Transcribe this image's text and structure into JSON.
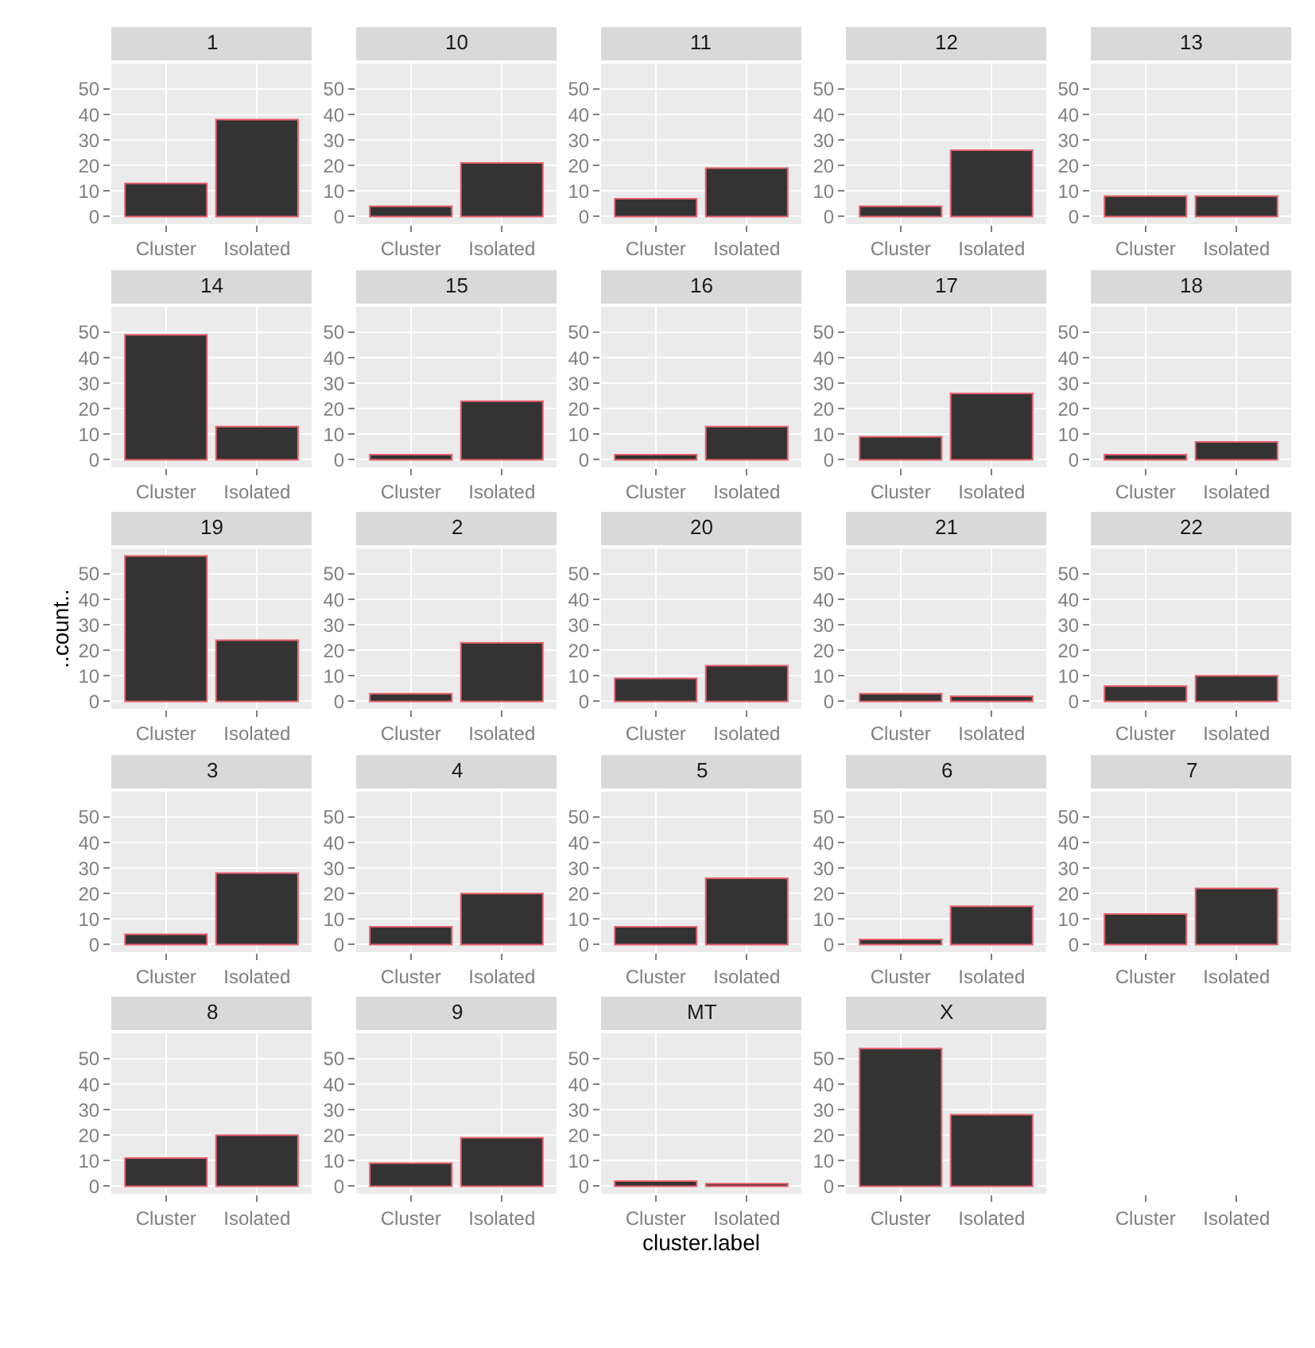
{
  "chart_data": [
    {
      "type": "bar",
      "title": "1",
      "categories": [
        "Cluster",
        "Isolated"
      ],
      "values": [
        13,
        38
      ],
      "colors": [
        "#333333",
        "#333333"
      ],
      "ylim": [
        -3,
        60
      ],
      "yticks": [
        0,
        10,
        20,
        30,
        40,
        50
      ],
      "grid": true
    },
    {
      "type": "bar",
      "title": "10",
      "categories": [
        "Cluster",
        "Isolated"
      ],
      "values": [
        4,
        21
      ],
      "colors": [
        "#333333",
        "#333333"
      ],
      "ylim": [
        -3,
        60
      ],
      "yticks": [
        0,
        10,
        20,
        30,
        40,
        50
      ],
      "grid": true
    },
    {
      "type": "bar",
      "title": "11",
      "categories": [
        "Cluster",
        "Isolated"
      ],
      "values": [
        7,
        19
      ],
      "colors": [
        "#333333",
        "#333333"
      ],
      "ylim": [
        -3,
        60
      ],
      "yticks": [
        0,
        10,
        20,
        30,
        40,
        50
      ],
      "grid": true
    },
    {
      "type": "bar",
      "title": "12",
      "categories": [
        "Cluster",
        "Isolated"
      ],
      "values": [
        4,
        26
      ],
      "colors": [
        "#333333",
        "#333333"
      ],
      "ylim": [
        -3,
        60
      ],
      "yticks": [
        0,
        10,
        20,
        30,
        40,
        50
      ],
      "grid": true
    },
    {
      "type": "bar",
      "title": "13",
      "categories": [
        "Cluster",
        "Isolated"
      ],
      "values": [
        8,
        8
      ],
      "colors": [
        "#333333",
        "#333333"
      ],
      "ylim": [
        -3,
        60
      ],
      "yticks": [
        0,
        10,
        20,
        30,
        40,
        50
      ],
      "grid": true
    },
    {
      "type": "bar",
      "title": "14",
      "categories": [
        "Cluster",
        "Isolated"
      ],
      "values": [
        49,
        13
      ],
      "colors": [
        "#333333",
        "#333333"
      ],
      "ylim": [
        -3,
        60
      ],
      "yticks": [
        0,
        10,
        20,
        30,
        40,
        50
      ],
      "grid": true
    },
    {
      "type": "bar",
      "title": "15",
      "categories": [
        "Cluster",
        "Isolated"
      ],
      "values": [
        2,
        23
      ],
      "colors": [
        "#333333",
        "#333333"
      ],
      "ylim": [
        -3,
        60
      ],
      "yticks": [
        0,
        10,
        20,
        30,
        40,
        50
      ],
      "grid": true
    },
    {
      "type": "bar",
      "title": "16",
      "categories": [
        "Cluster",
        "Isolated"
      ],
      "values": [
        2,
        13
      ],
      "colors": [
        "#333333",
        "#333333"
      ],
      "ylim": [
        -3,
        60
      ],
      "yticks": [
        0,
        10,
        20,
        30,
        40,
        50
      ],
      "grid": true
    },
    {
      "type": "bar",
      "title": "17",
      "categories": [
        "Cluster",
        "Isolated"
      ],
      "values": [
        9,
        26
      ],
      "colors": [
        "#333333",
        "#333333"
      ],
      "ylim": [
        -3,
        60
      ],
      "yticks": [
        0,
        10,
        20,
        30,
        40,
        50
      ],
      "grid": true
    },
    {
      "type": "bar",
      "title": "18",
      "categories": [
        "Cluster",
        "Isolated"
      ],
      "values": [
        2,
        7
      ],
      "colors": [
        "#333333",
        "#333333"
      ],
      "ylim": [
        -3,
        60
      ],
      "yticks": [
        0,
        10,
        20,
        30,
        40,
        50
      ],
      "grid": true
    },
    {
      "type": "bar",
      "title": "19",
      "ylabel": "..count..",
      "categories": [
        "Cluster",
        "Isolated"
      ],
      "values": [
        57,
        24
      ],
      "colors": [
        "#333333",
        "#333333"
      ],
      "ylim": [
        -3,
        60
      ],
      "yticks": [
        0,
        10,
        20,
        30,
        40,
        50
      ],
      "grid": true
    },
    {
      "type": "bar",
      "title": "2",
      "categories": [
        "Cluster",
        "Isolated"
      ],
      "values": [
        3,
        23
      ],
      "colors": [
        "#333333",
        "#333333"
      ],
      "ylim": [
        -3,
        60
      ],
      "yticks": [
        0,
        10,
        20,
        30,
        40,
        50
      ],
      "grid": true
    },
    {
      "type": "bar",
      "title": "20",
      "categories": [
        "Cluster",
        "Isolated"
      ],
      "values": [
        9,
        14
      ],
      "colors": [
        "#333333",
        "#333333"
      ],
      "ylim": [
        -3,
        60
      ],
      "yticks": [
        0,
        10,
        20,
        30,
        40,
        50
      ],
      "grid": true
    },
    {
      "type": "bar",
      "title": "21",
      "categories": [
        "Cluster",
        "Isolated"
      ],
      "values": [
        3,
        2
      ],
      "colors": [
        "#333333",
        "#333333"
      ],
      "ylim": [
        -3,
        60
      ],
      "yticks": [
        0,
        10,
        20,
        30,
        40,
        50
      ],
      "grid": true
    },
    {
      "type": "bar",
      "title": "22",
      "categories": [
        "Cluster",
        "Isolated"
      ],
      "values": [
        6,
        10
      ],
      "colors": [
        "#333333",
        "#333333"
      ],
      "ylim": [
        -3,
        60
      ],
      "yticks": [
        0,
        10,
        20,
        30,
        40,
        50
      ],
      "grid": true
    },
    {
      "type": "bar",
      "title": "3",
      "categories": [
        "Cluster",
        "Isolated"
      ],
      "values": [
        4,
        28
      ],
      "colors": [
        "#333333",
        "#333333"
      ],
      "ylim": [
        -3,
        60
      ],
      "yticks": [
        0,
        10,
        20,
        30,
        40,
        50
      ],
      "grid": true
    },
    {
      "type": "bar",
      "title": "4",
      "categories": [
        "Cluster",
        "Isolated"
      ],
      "values": [
        7,
        20
      ],
      "colors": [
        "#333333",
        "#333333"
      ],
      "ylim": [
        -3,
        60
      ],
      "yticks": [
        0,
        10,
        20,
        30,
        40,
        50
      ],
      "grid": true
    },
    {
      "type": "bar",
      "title": "5",
      "categories": [
        "Cluster",
        "Isolated"
      ],
      "values": [
        7,
        26
      ],
      "colors": [
        "#333333",
        "#333333"
      ],
      "ylim": [
        -3,
        60
      ],
      "yticks": [
        0,
        10,
        20,
        30,
        40,
        50
      ],
      "grid": true
    },
    {
      "type": "bar",
      "title": "6",
      "categories": [
        "Cluster",
        "Isolated"
      ],
      "values": [
        2,
        15
      ],
      "colors": [
        "#333333",
        "#333333"
      ],
      "ylim": [
        -3,
        60
      ],
      "yticks": [
        0,
        10,
        20,
        30,
        40,
        50
      ],
      "grid": true
    },
    {
      "type": "bar",
      "title": "7",
      "categories": [
        "Cluster",
        "Isolated"
      ],
      "values": [
        12,
        22
      ],
      "colors": [
        "#333333",
        "#333333"
      ],
      "ylim": [
        -3,
        60
      ],
      "yticks": [
        0,
        10,
        20,
        30,
        40,
        50
      ],
      "grid": true
    },
    {
      "type": "bar",
      "title": "8",
      "categories": [
        "Cluster",
        "Isolated"
      ],
      "values": [
        11,
        20
      ],
      "colors": [
        "#333333",
        "#333333"
      ],
      "ylim": [
        -3,
        60
      ],
      "yticks": [
        0,
        10,
        20,
        30,
        40,
        50
      ],
      "grid": true
    },
    {
      "type": "bar",
      "title": "9",
      "categories": [
        "Cluster",
        "Isolated"
      ],
      "values": [
        9,
        19
      ],
      "colors": [
        "#333333",
        "#333333"
      ],
      "ylim": [
        -3,
        60
      ],
      "yticks": [
        0,
        10,
        20,
        30,
        40,
        50
      ],
      "grid": true
    },
    {
      "type": "bar",
      "title": "MT",
      "xlabel": "cluster.label",
      "categories": [
        "Cluster",
        "Isolated"
      ],
      "values": [
        2,
        1
      ],
      "colors": [
        "#333333",
        "#333333"
      ],
      "ylim": [
        -3,
        60
      ],
      "yticks": [
        0,
        10,
        20,
        30,
        40,
        50
      ],
      "grid": true
    },
    {
      "type": "bar",
      "title": "X",
      "categories": [
        "Cluster",
        "Isolated"
      ],
      "values": [
        54,
        28
      ],
      "colors": [
        "#333333",
        "#333333"
      ],
      "ylim": [
        -3,
        60
      ],
      "yticks": [
        0,
        10,
        20,
        30,
        40,
        50
      ],
      "grid": true
    },
    {
      "type": "other",
      "categories": [
        "Cluster",
        "Isolated"
      ]
    }
  ]
}
